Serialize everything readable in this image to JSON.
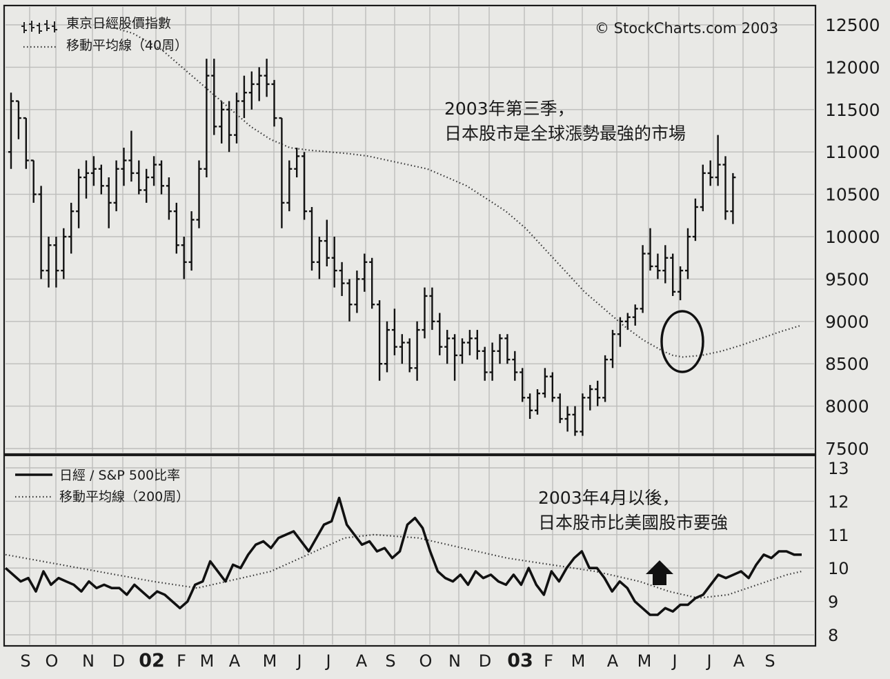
{
  "chart_data": [
    {
      "type": "ohlc",
      "legend": [
        {
          "label": "東京日經股價指數",
          "style": "ohlc"
        },
        {
          "label": "移動平均線（40周）",
          "style": "dotted"
        }
      ],
      "watermark": "© StockCharts.com 2003",
      "annotation": [
        "2003年第三季，",
        "日本股市是全球漲勢最強的市場"
      ],
      "y_ticks": [
        "12500",
        "12000",
        "11500",
        "11000",
        "10500",
        "10000",
        "9500",
        "9000",
        "8500",
        "8000",
        "7500"
      ],
      "ylim": [
        7500,
        12500
      ],
      "x_months": [
        "S",
        "O",
        "N",
        "D",
        "02",
        "F",
        "M",
        "A",
        "M",
        "J",
        "J",
        "A",
        "S",
        "O",
        "N",
        "D",
        "03",
        "F",
        "M",
        "A",
        "M",
        "J",
        "J",
        "A",
        "S"
      ],
      "x_months_bold": [
        4,
        16
      ],
      "series": [
        {
          "name": "東京日經股價指數",
          "ohlc_weekly": [
            [
              11000,
              11700,
              10800,
              11600
            ],
            [
              11600,
              11600,
              11150,
              11400
            ],
            [
              11400,
              11400,
              10800,
              10900
            ],
            [
              10900,
              10900,
              10400,
              10500
            ],
            [
              10500,
              10600,
              9500,
              9600
            ],
            [
              9600,
              10000,
              9400,
              9900
            ],
            [
              9900,
              10000,
              9400,
              9600
            ],
            [
              9600,
              10100,
              9500,
              10000
            ],
            [
              10000,
              10400,
              9800,
              10300
            ],
            [
              10300,
              10800,
              10100,
              10700
            ],
            [
              10700,
              10900,
              10450,
              10750
            ],
            [
              10750,
              10950,
              10600,
              10800
            ],
            [
              10800,
              10850,
              10500,
              10600
            ],
            [
              10600,
              10700,
              10100,
              10400
            ],
            [
              10400,
              10900,
              10300,
              10800
            ],
            [
              10800,
              11050,
              10600,
              10900
            ],
            [
              10900,
              11250,
              10650,
              10750
            ],
            [
              10750,
              10900,
              10500,
              10550
            ],
            [
              10550,
              10800,
              10400,
              10700
            ],
            [
              10700,
              10950,
              10600,
              10850
            ],
            [
              10850,
              10900,
              10500,
              10600
            ],
            [
              10600,
              10700,
              10200,
              10300
            ],
            [
              10300,
              10400,
              9800,
              9900
            ],
            [
              9900,
              10000,
              9500,
              9700
            ],
            [
              9700,
              10300,
              9600,
              10200
            ],
            [
              10200,
              10900,
              10100,
              10800
            ],
            [
              10800,
              12100,
              10700,
              11900
            ],
            [
              11900,
              12100,
              11200,
              11300
            ],
            [
              11300,
              11600,
              11100,
              11500
            ],
            [
              11500,
              11600,
              11000,
              11200
            ],
            [
              11200,
              11700,
              11100,
              11600
            ],
            [
              11600,
              11900,
              11400,
              11700
            ],
            [
              11700,
              11950,
              11500,
              11800
            ],
            [
              11800,
              12000,
              11600,
              11900
            ],
            [
              11900,
              12100,
              11650,
              11800
            ],
            [
              11800,
              11850,
              11300,
              11400
            ],
            [
              11400,
              11400,
              10100,
              10400
            ],
            [
              10400,
              10900,
              10300,
              10800
            ],
            [
              10800,
              11050,
              10700,
              10950
            ],
            [
              10950,
              11000,
              10200,
              10300
            ],
            [
              10300,
              10350,
              9600,
              9700
            ],
            [
              9700,
              10000,
              9500,
              9950
            ],
            [
              9950,
              10200,
              9650,
              9750
            ],
            [
              9750,
              10000,
              9400,
              9600
            ],
            [
              9600,
              9700,
              9300,
              9450
            ],
            [
              9450,
              9500,
              9000,
              9200
            ],
            [
              9200,
              9600,
              9100,
              9500
            ],
            [
              9500,
              9800,
              9350,
              9700
            ],
            [
              9700,
              9750,
              9150,
              9200
            ],
            [
              9200,
              9250,
              8300,
              8500
            ],
            [
              8500,
              9000,
              8400,
              8900
            ],
            [
              8900,
              9150,
              8600,
              8700
            ],
            [
              8700,
              8850,
              8500,
              8750
            ],
            [
              8750,
              8800,
              8400,
              8450
            ],
            [
              8450,
              9000,
              8300,
              8900
            ],
            [
              8900,
              9400,
              8800,
              9300
            ],
            [
              9300,
              9400,
              8900,
              9000
            ],
            [
              9000,
              9100,
              8600,
              8700
            ],
            [
              8700,
              8900,
              8500,
              8800
            ],
            [
              8800,
              8850,
              8300,
              8600
            ],
            [
              8600,
              8800,
              8500,
              8750
            ],
            [
              8750,
              8900,
              8600,
              8800
            ],
            [
              8800,
              8900,
              8550,
              8650
            ],
            [
              8650,
              8700,
              8300,
              8400
            ],
            [
              8400,
              8750,
              8300,
              8650
            ],
            [
              8650,
              8850,
              8500,
              8800
            ],
            [
              8800,
              8850,
              8500,
              8550
            ],
            [
              8550,
              8650,
              8300,
              8400
            ],
            [
              8400,
              8450,
              8050,
              8100
            ],
            [
              8100,
              8150,
              7850,
              7950
            ],
            [
              7950,
              8200,
              7900,
              8150
            ],
            [
              8150,
              8450,
              8100,
              8350
            ],
            [
              8350,
              8400,
              8050,
              8100
            ],
            [
              8100,
              8150,
              7800,
              7850
            ],
            [
              7850,
              8000,
              7700,
              7900
            ],
            [
              7900,
              8000,
              7650,
              7700
            ],
            [
              7700,
              8150,
              7650,
              8100
            ],
            [
              8100,
              8250,
              7950,
              8200
            ],
            [
              8200,
              8300,
              8000,
              8100
            ],
            [
              8100,
              8600,
              8050,
              8550
            ],
            [
              8550,
              8900,
              8450,
              8850
            ],
            [
              8850,
              9050,
              8700,
              9000
            ],
            [
              9000,
              9100,
              8900,
              9050
            ],
            [
              9050,
              9200,
              8950,
              9150
            ],
            [
              9150,
              9900,
              9100,
              9800
            ],
            [
              9800,
              10100,
              9600,
              9650
            ],
            [
              9650,
              9800,
              9500,
              9600
            ],
            [
              9600,
              9900,
              9450,
              9750
            ],
            [
              9750,
              9800,
              9300,
              9350
            ],
            [
              9350,
              9650,
              9250,
              9600
            ],
            [
              9600,
              10100,
              9500,
              10000
            ],
            [
              10000,
              10450,
              9950,
              10350
            ],
            [
              10350,
              10850,
              10300,
              10750
            ],
            [
              10750,
              10900,
              10600,
              10700
            ],
            [
              10700,
              11200,
              10600,
              10850
            ],
            [
              10850,
              10950,
              10200,
              10300
            ],
            [
              10300,
              10750,
              10150,
              10700
            ]
          ]
        },
        {
          "name": "移動平均線（40周）",
          "points": [
            [
              1,
              12500
            ],
            [
              4,
              12400
            ],
            [
              7,
              12200
            ],
            [
              10,
              11900
            ],
            [
              13,
              11600
            ],
            [
              16,
              11300
            ],
            [
              18,
              11150
            ],
            [
              20,
              11050
            ],
            [
              22,
              11020
            ],
            [
              24,
              11000
            ],
            [
              26,
              10980
            ],
            [
              28,
              10950
            ],
            [
              30,
              10900
            ],
            [
              32,
              10850
            ],
            [
              34,
              10800
            ],
            [
              36,
              10700
            ],
            [
              38,
              10600
            ],
            [
              40,
              10450
            ],
            [
              42,
              10300
            ],
            [
              44,
              10100
            ],
            [
              46,
              9850
            ],
            [
              48,
              9600
            ],
            [
              50,
              9350
            ],
            [
              52,
              9150
            ],
            [
              54,
              8950
            ],
            [
              56,
              8780
            ],
            [
              58,
              8650
            ],
            [
              59,
              8600
            ],
            [
              60,
              8580
            ],
            [
              62,
              8600
            ],
            [
              64,
              8650
            ],
            [
              66,
              8720
            ],
            [
              68,
              8800
            ],
            [
              70,
              8880
            ],
            [
              72,
              8950
            ]
          ],
          "style": "dotted"
        }
      ]
    },
    {
      "type": "line",
      "legend": [
        {
          "label": "日經 / S&P 500比率",
          "style": "solid"
        },
        {
          "label": "移動平均線（200周）",
          "style": "dotted"
        }
      ],
      "annotation": [
        "2003年4月以後，",
        "日本股市比美國股市要強"
      ],
      "y_ticks": [
        "13",
        "12",
        "11",
        "10",
        "9",
        "8"
      ],
      "ylim": [
        8,
        13
      ],
      "series": [
        {
          "name": "日經 / S&P 500比率",
          "values": [
            10.0,
            9.8,
            9.6,
            9.7,
            9.3,
            9.9,
            9.5,
            9.7,
            9.6,
            9.5,
            9.3,
            9.6,
            9.4,
            9.5,
            9.4,
            9.4,
            9.2,
            9.5,
            9.3,
            9.1,
            9.3,
            9.2,
            9.0,
            8.8,
            9.0,
            9.5,
            9.6,
            10.2,
            9.9,
            9.6,
            10.1,
            10.0,
            10.4,
            10.7,
            10.8,
            10.6,
            10.9,
            11.0,
            11.1,
            10.8,
            10.5,
            10.9,
            11.3,
            11.4,
            12.1,
            11.3,
            11.0,
            10.7,
            10.8,
            10.5,
            10.6,
            10.3,
            10.5,
            11.3,
            11.5,
            11.2,
            10.5,
            9.9,
            9.7,
            9.6,
            9.8,
            9.5,
            9.9,
            9.7,
            9.8,
            9.6,
            9.5,
            9.8,
            9.5,
            10.0,
            9.5,
            9.2,
            9.9,
            9.6,
            10.0,
            10.3,
            10.5,
            10.0,
            10.0,
            9.7,
            9.3,
            9.6,
            9.4,
            9.0,
            8.8,
            8.6,
            8.6,
            8.8,
            8.7,
            8.9,
            8.9,
            9.1,
            9.2,
            9.5,
            9.8,
            9.7,
            9.8,
            9.9,
            9.7,
            10.1,
            10.4,
            10.3,
            10.5,
            10.5,
            10.4,
            10.4
          ]
        },
        {
          "name": "移動平均線（200周）",
          "points": [
            [
              0,
              10.4
            ],
            [
              10,
              10.0
            ],
            [
              20,
              9.6
            ],
            [
              26,
              9.4
            ],
            [
              30,
              9.6
            ],
            [
              36,
              9.9
            ],
            [
              40,
              10.3
            ],
            [
              46,
              10.9
            ],
            [
              50,
              11.0
            ],
            [
              56,
              10.9
            ],
            [
              62,
              10.6
            ],
            [
              68,
              10.3
            ],
            [
              74,
              10.1
            ],
            [
              80,
              9.9
            ],
            [
              86,
              9.6
            ],
            [
              90,
              9.3
            ],
            [
              94,
              9.1
            ],
            [
              98,
              9.2
            ],
            [
              102,
              9.5
            ],
            [
              106,
              9.8
            ],
            [
              108,
              9.9
            ]
          ],
          "style": "dotted"
        }
      ]
    }
  ]
}
